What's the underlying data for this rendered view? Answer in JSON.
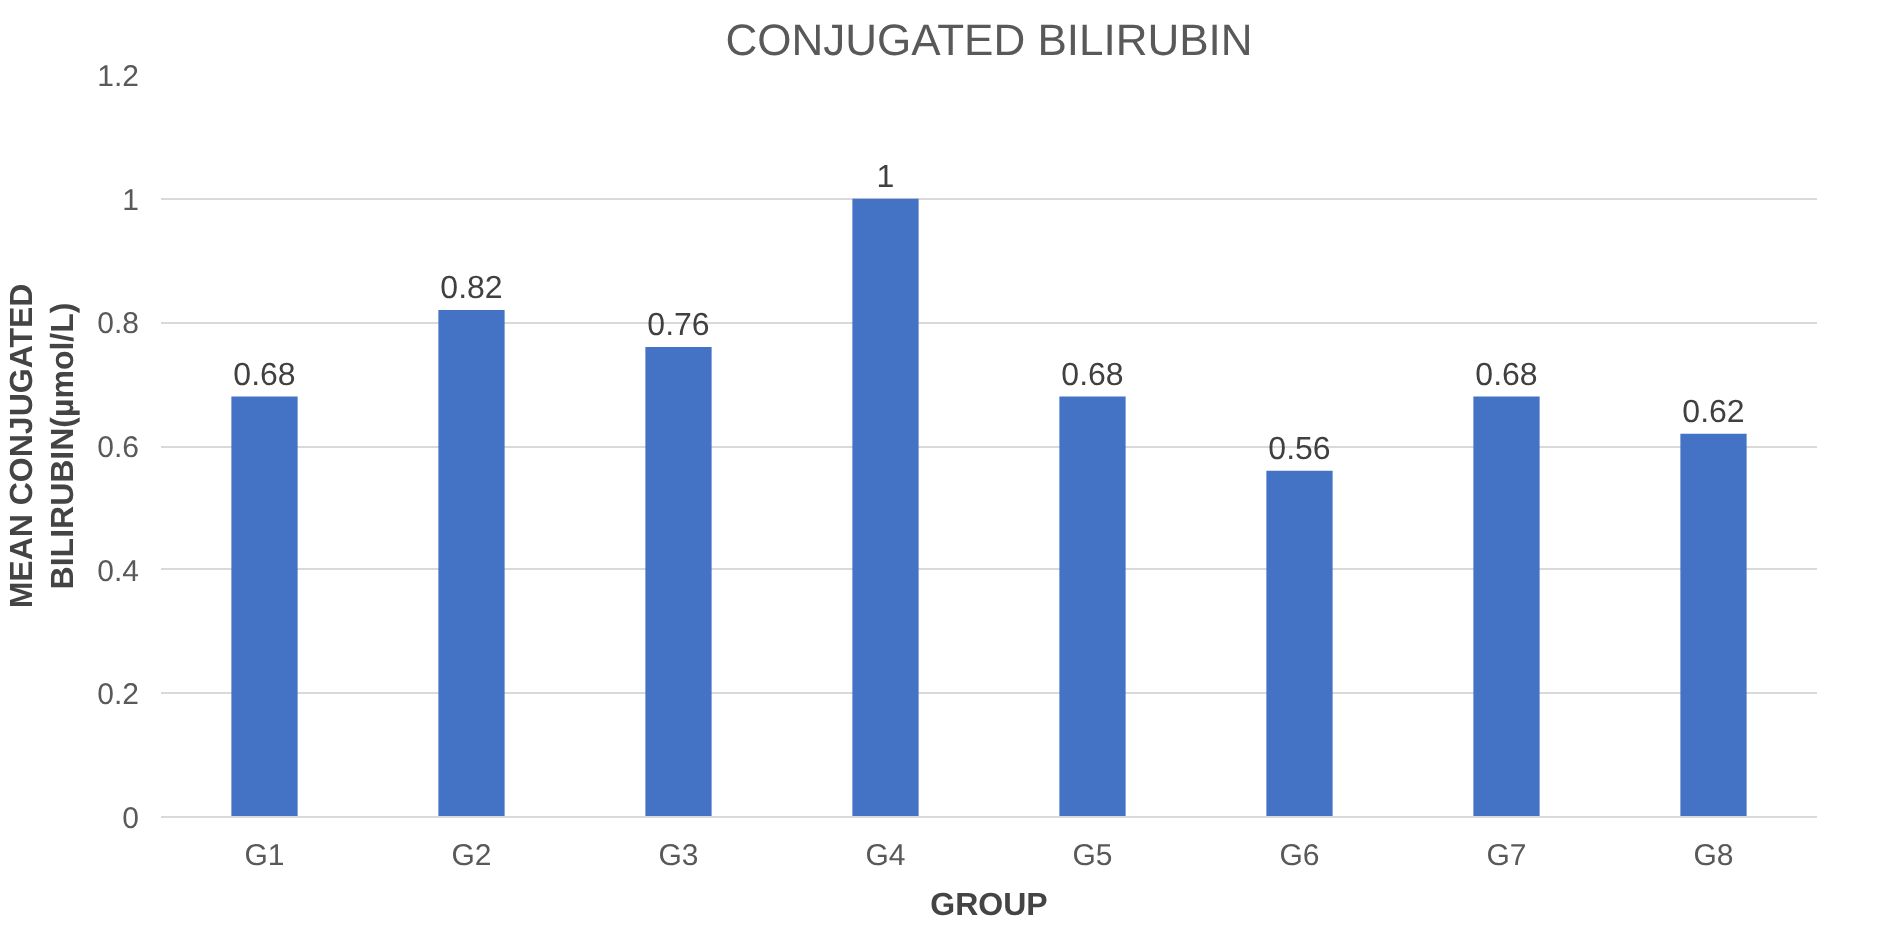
{
  "chart_data": {
    "type": "bar",
    "title": "CONJUGATED BILIRUBIN",
    "xlabel": "GROUP",
    "ylabel": "MEAN CONJUGATED\nBILIRUBIN(µmol/L)",
    "categories": [
      "G1",
      "G2",
      "G3",
      "G4",
      "G5",
      "G6",
      "G7",
      "G8"
    ],
    "values": [
      0.68,
      0.82,
      0.76,
      1,
      0.68,
      0.56,
      0.68,
      0.62
    ],
    "color": "#4472c4",
    "ylim": [
      0,
      1.2
    ],
    "yticks": [
      0,
      0.2,
      0.4,
      0.6,
      0.8,
      1,
      1.2
    ],
    "grid": "y",
    "data_labels": true
  }
}
